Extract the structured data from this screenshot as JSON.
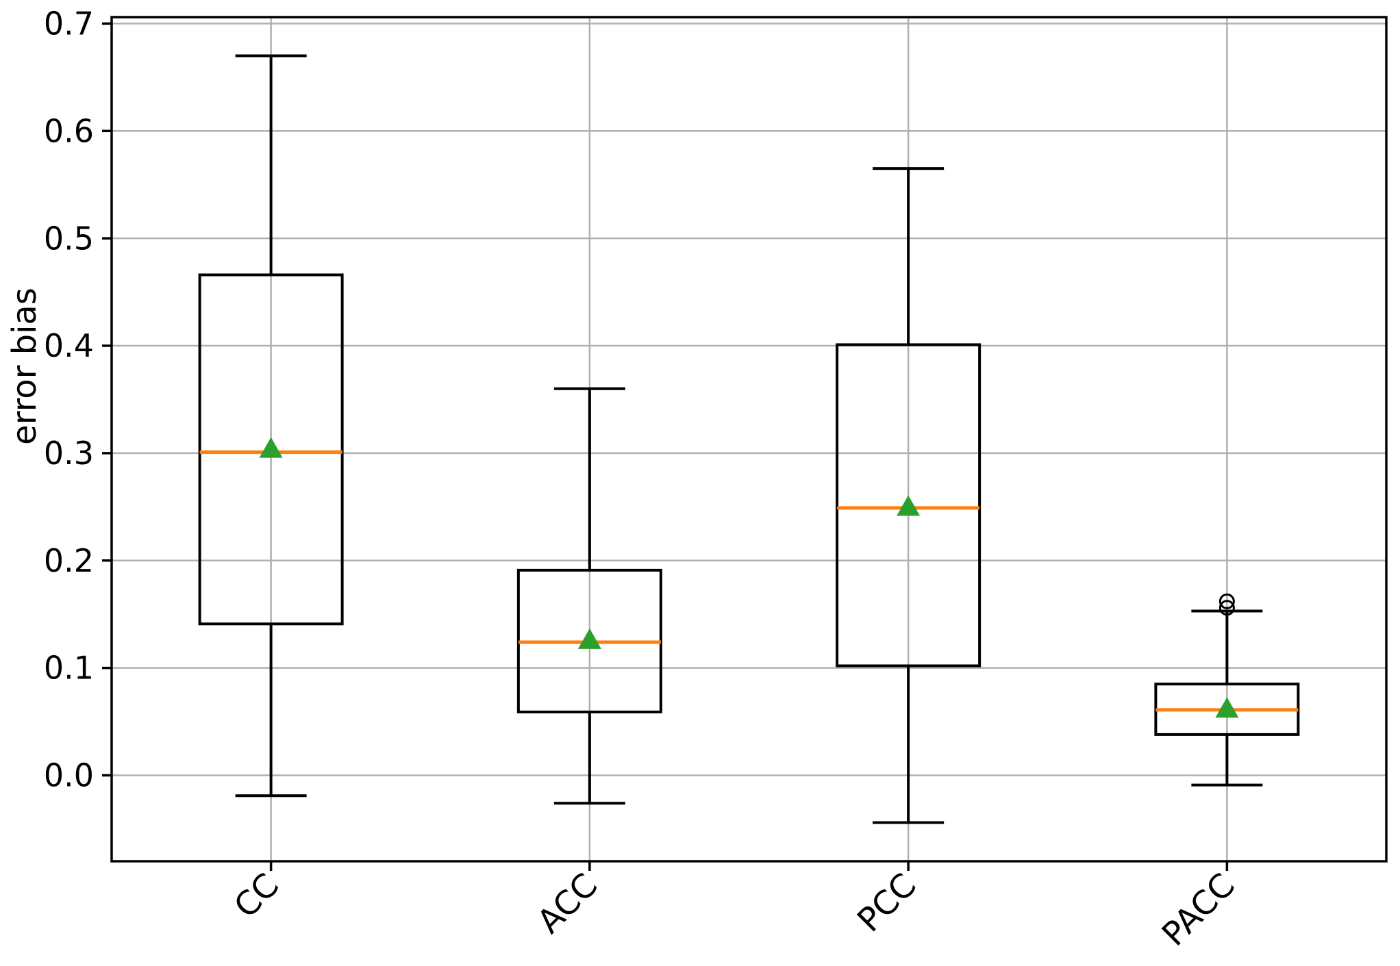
{
  "figure": {
    "background": "#ffffff"
  },
  "chart_data": {
    "type": "box",
    "title": "",
    "xlabel": "",
    "ylabel": "error bias",
    "categories": [
      "CC",
      "ACC",
      "PCC",
      "PACC"
    ],
    "series": [
      {
        "name": "CC",
        "whislo": -0.019,
        "q1": 0.141,
        "med": 0.301,
        "mean": 0.304,
        "q3": 0.466,
        "whishi": 0.67,
        "fliers": []
      },
      {
        "name": "ACC",
        "whislo": -0.026,
        "q1": 0.059,
        "med": 0.124,
        "mean": 0.126,
        "q3": 0.191,
        "whishi": 0.36,
        "fliers": []
      },
      {
        "name": "PCC",
        "whislo": -0.044,
        "q1": 0.102,
        "med": 0.249,
        "mean": 0.25,
        "q3": 0.401,
        "whishi": 0.565,
        "fliers": []
      },
      {
        "name": "PACC",
        "whislo": -0.009,
        "q1": 0.038,
        "med": 0.061,
        "mean": 0.062,
        "q3": 0.085,
        "whishi": 0.153,
        "fliers": [
          0.156,
          0.162
        ]
      }
    ],
    "ylim": [
      -0.08,
      0.706
    ],
    "yticks": [
      0.0,
      0.1,
      0.2,
      0.3,
      0.4,
      0.5,
      0.6,
      0.7
    ],
    "ytick_labels": [
      "0.0",
      "0.1",
      "0.2",
      "0.3",
      "0.4",
      "0.5",
      "0.6",
      "0.7"
    ],
    "grid": true,
    "legend": "none",
    "style": {
      "box_color": "#000000",
      "whisker_color": "#000000",
      "median_color": "#ff7f0e",
      "mean_color": "#2ca02c",
      "mean_marker": "triangle-up",
      "flier_marker": "open-circle",
      "flier_color": "#000000",
      "grid_color": "#b0b0b0",
      "text_color": "#000000"
    }
  }
}
